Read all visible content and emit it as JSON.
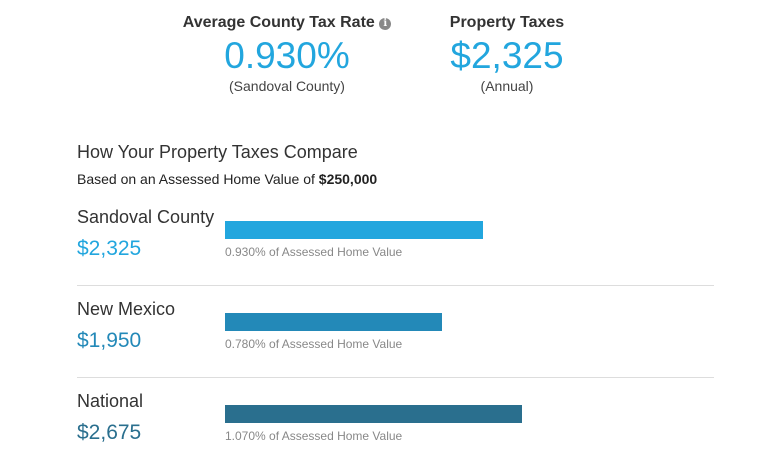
{
  "summary": {
    "rate_label": "Average County Tax Rate",
    "rate_value": "0.930%",
    "rate_sub": "(Sandoval County)",
    "tax_label": "Property Taxes",
    "tax_value": "$2,325",
    "tax_sub": "(Annual)",
    "info_icon": "info-icon"
  },
  "compare": {
    "title": "How Your Property Taxes Compare",
    "subtitle_prefix": "Based on an Assessed Home Value of ",
    "home_value": "$250,000",
    "rows": [
      {
        "name": "Sandoval County",
        "amount": "$2,325",
        "value": 2325,
        "pct": "0.930% of Assessed Home Value",
        "color": "#22a6de"
      },
      {
        "name": "New Mexico",
        "amount": "$1,950",
        "value": 1950,
        "pct": "0.780% of Assessed Home Value",
        "color": "#2389b8"
      },
      {
        "name": "National",
        "amount": "$2,675",
        "value": 2675,
        "pct": "1.070% of Assessed Home Value",
        "color": "#2a6f8e"
      }
    ]
  }
}
